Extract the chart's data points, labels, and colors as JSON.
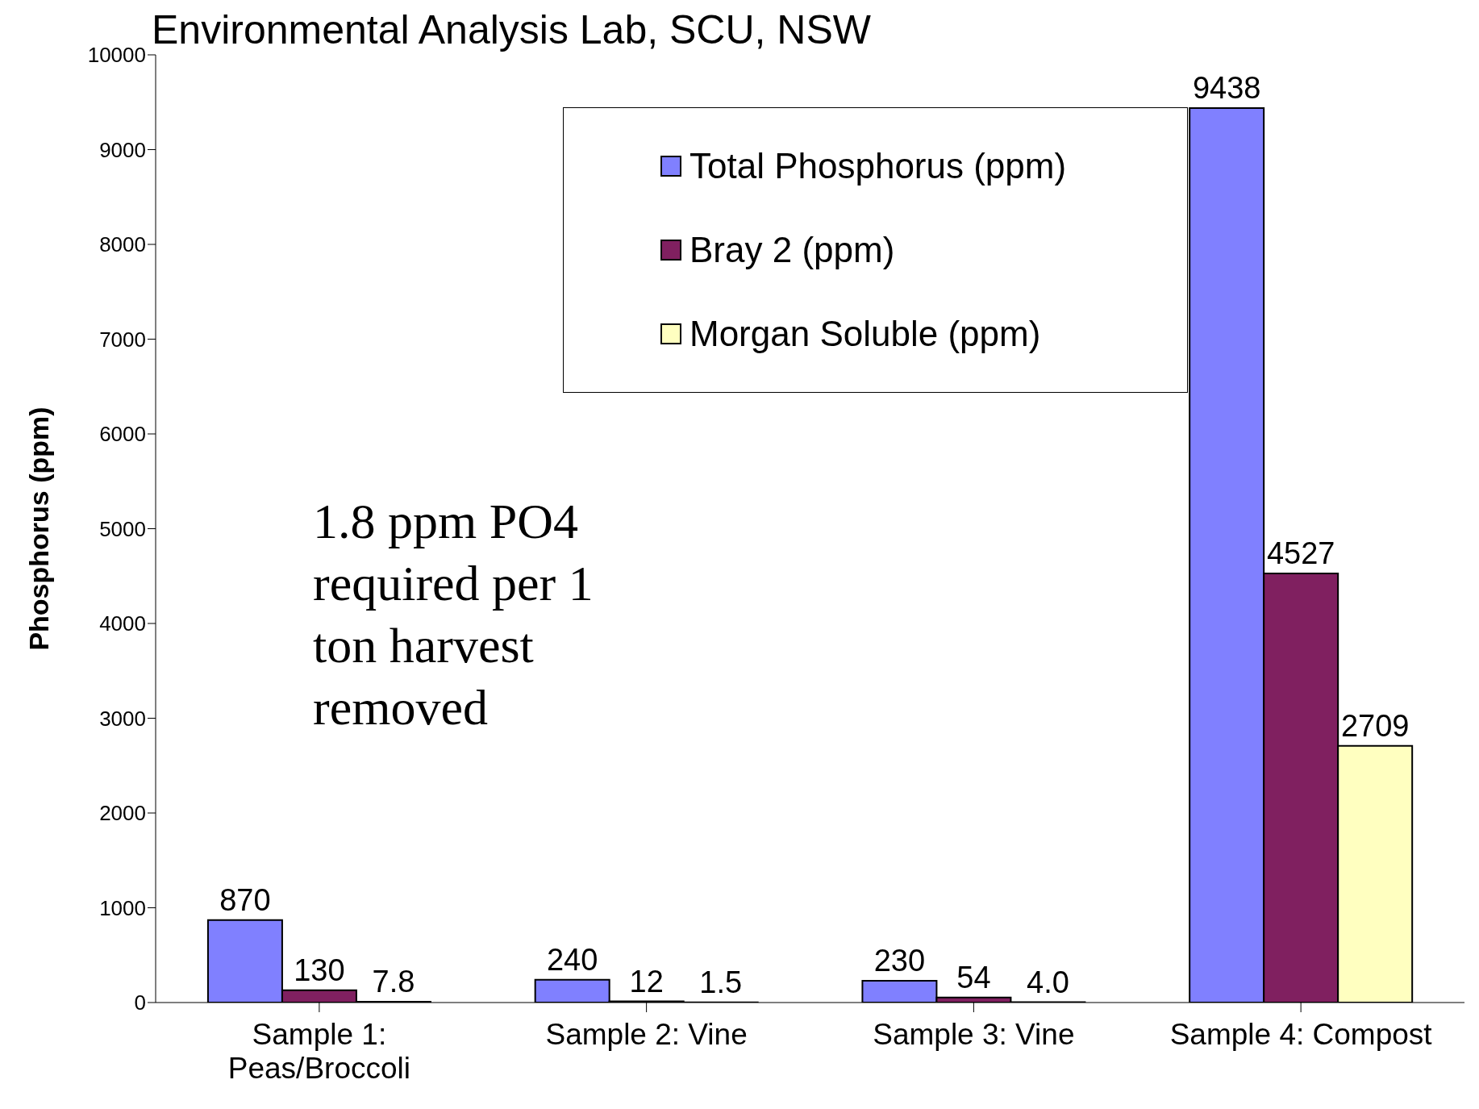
{
  "chart_data": {
    "type": "bar",
    "title": "Environmental Analysis Lab, SCU, NSW",
    "ylabel": "Phosphorus (ppm)",
    "categories": [
      "Sample 1: Peas/Broccoli",
      "Sample 2: Vine",
      "Sample 3: Vine",
      "Sample 4: Compost"
    ],
    "series": [
      {
        "name": "Total Phosphorus (ppm)",
        "color": "#8080ff",
        "values": [
          870,
          240,
          230,
          9438
        ],
        "value_labels": [
          "870",
          "240",
          "230",
          "9438"
        ]
      },
      {
        "name": "Bray 2 (ppm)",
        "color": "#802060",
        "values": [
          130,
          12,
          54,
          4527
        ],
        "value_labels": [
          "130",
          "12",
          "54",
          "4527"
        ]
      },
      {
        "name": "Morgan Soluble (ppm)",
        "color": "#ffffc0",
        "values": [
          7.8,
          1.5,
          4.0,
          2709
        ],
        "value_labels": [
          "7.8",
          "1.5",
          "4.0",
          "2709"
        ]
      }
    ],
    "ylim": [
      0,
      10000
    ],
    "yticks": [
      0,
      1000,
      2000,
      3000,
      4000,
      5000,
      6000,
      7000,
      8000,
      9000,
      10000
    ],
    "grid": false,
    "legend": "top",
    "annotations": [
      "1.8 ppm PO4 required per 1 ton harvest removed"
    ]
  }
}
